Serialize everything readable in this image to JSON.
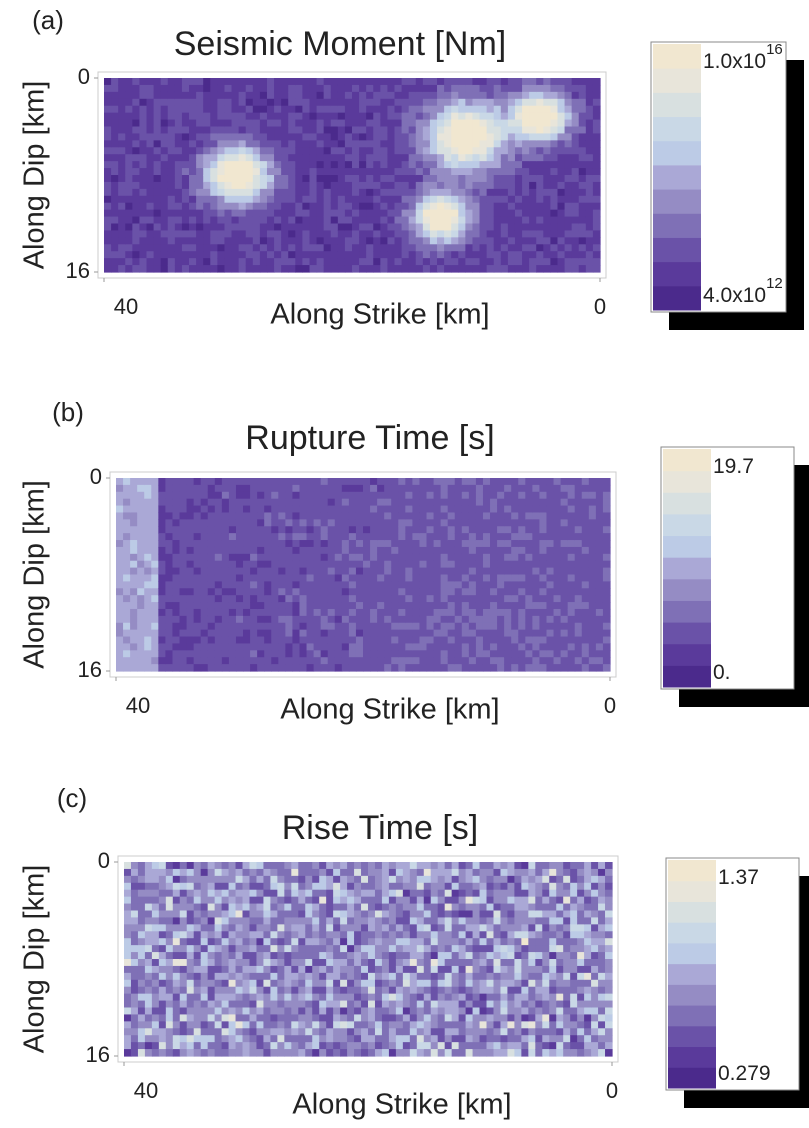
{
  "chart_data": [
    {
      "type": "heatmap",
      "panel_label": "(a)",
      "title": "Seismic Moment [Nm]",
      "x_label": "Along Strike [km]",
      "y_label": "Along Dip [km]",
      "xlim": [
        40,
        0
      ],
      "ylim": [
        0,
        16
      ],
      "xticks": [
        40,
        0
      ],
      "yticks": [
        0,
        16
      ],
      "colorbar": {
        "colors": [
          "#4b2a8c",
          "#5a3a9b",
          "#6a52a8",
          "#7f70b6",
          "#958cc4",
          "#aaa8d6",
          "#bccbe6",
          "#c9d8e6",
          "#d8e0e0",
          "#e8e5da",
          "#f1e7d0"
        ],
        "ticks": [
          {
            "value": 1e+16,
            "label": "1.0x10",
            "superscript": "16"
          },
          {
            "value": 4000000000000.0,
            "label": "4.0x10",
            "superscript": "12"
          }
        ]
      }
    },
    {
      "type": "heatmap",
      "panel_label": "(b)",
      "title": "Rupture Time [s]",
      "x_label": "Along Strike [km]",
      "y_label": "Along Dip [km]",
      "xlim": [
        40,
        0
      ],
      "ylim": [
        0,
        16
      ],
      "xticks": [
        40,
        0
      ],
      "yticks": [
        0,
        16
      ],
      "colorbar": {
        "colors": [
          "#4b2a8c",
          "#5a3a9b",
          "#6a52a8",
          "#7f70b6",
          "#958cc4",
          "#aaa8d6",
          "#bccbe6",
          "#c9d8e6",
          "#d8e0e0",
          "#e8e5da",
          "#f1e7d0"
        ],
        "ticks": [
          19.7,
          {
            "value": 0,
            "label": "0."
          }
        ]
      }
    },
    {
      "type": "heatmap",
      "panel_label": "(c)",
      "title": "Rise Time [s]",
      "x_label": "Along Strike [km]",
      "y_label": "Along Dip [km]",
      "xlim": [
        40,
        0
      ],
      "ylim": [
        0,
        16
      ],
      "xticks": [
        40,
        0
      ],
      "yticks": [
        0,
        16
      ],
      "colorbar": {
        "colors": [
          "#4b2a8c",
          "#5a3a9b",
          "#6a52a8",
          "#7f70b6",
          "#958cc4",
          "#aaa8d6",
          "#bccbe6",
          "#c9d8e6",
          "#d8e0e0",
          "#e8e5da",
          "#f1e7d0"
        ],
        "ticks": [
          1.37,
          0.279
        ]
      }
    }
  ]
}
